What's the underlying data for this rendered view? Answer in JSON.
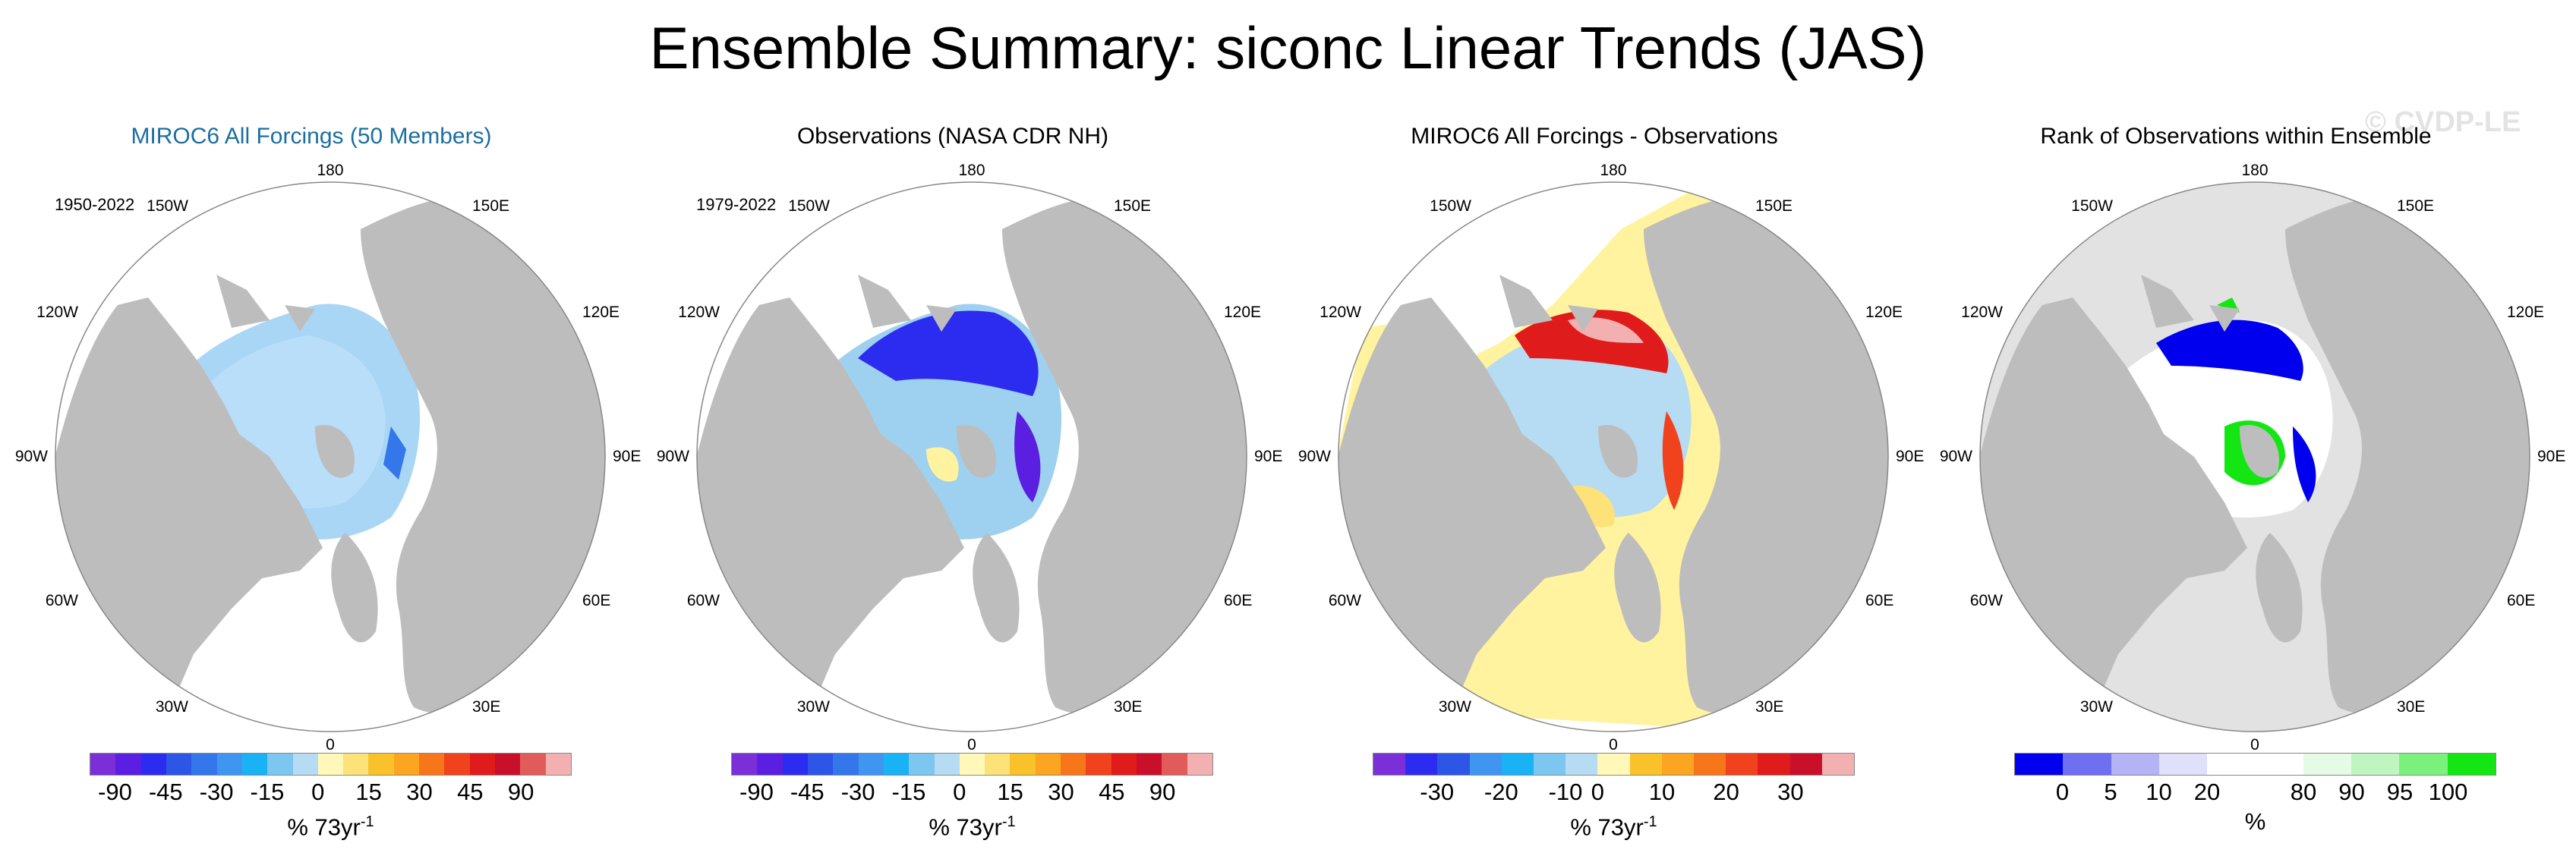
{
  "figure": {
    "title": "Ensemble Summary: siconc Linear Trends (JAS)",
    "watermark": "© CVDP-LE"
  },
  "chart_data": [
    {
      "type": "heatmap",
      "title": "MIROC6 All Forcings (50 Members)",
      "title_color": "#1b6fa0",
      "period": "1950-2022",
      "projection": "north polar stereographic",
      "longitude_labels": [
        "180",
        "150W",
        "150E",
        "120W",
        "120E",
        "90W",
        "90E",
        "60W",
        "60E",
        "30W",
        "30E",
        "0"
      ],
      "colorbar": {
        "colors": [
          "#7b2fd9",
          "#5a1fe0",
          "#2c2cf0",
          "#2d55e6",
          "#3477ea",
          "#3f95f0",
          "#19b2f5",
          "#7cc6f0",
          "#b5dcf3",
          "#fff8b8",
          "#fde27a",
          "#f9c22a",
          "#fba521",
          "#f7761a",
          "#f0421c",
          "#e01b1b",
          "#c8102a",
          "#e25b5b",
          "#f2b0b0"
        ],
        "tick_labels": [
          "-90",
          "-45",
          "-30",
          "-15",
          "0",
          "15",
          "30",
          "45",
          "90"
        ],
        "unit": "% 73yr",
        "unit_exponent": "-1"
      }
    },
    {
      "type": "heatmap",
      "title": "Observations (NASA CDR NH)",
      "title_color": "#000000",
      "period": "1979-2022",
      "projection": "north polar stereographic",
      "longitude_labels": [
        "180",
        "150W",
        "150E",
        "120W",
        "120E",
        "90W",
        "90E",
        "60W",
        "60E",
        "30W",
        "30E",
        "0"
      ],
      "colorbar": {
        "colors": [
          "#7b2fd9",
          "#5a1fe0",
          "#2c2cf0",
          "#2d55e6",
          "#3477ea",
          "#3f95f0",
          "#19b2f5",
          "#7cc6f0",
          "#b5dcf3",
          "#fff8b8",
          "#fde27a",
          "#f9c22a",
          "#fba521",
          "#f7761a",
          "#f0421c",
          "#e01b1b",
          "#c8102a",
          "#e25b5b",
          "#f2b0b0"
        ],
        "tick_labels": [
          "-90",
          "-45",
          "-30",
          "-15",
          "0",
          "15",
          "30",
          "45",
          "90"
        ],
        "unit": "% 73yr",
        "unit_exponent": "-1"
      }
    },
    {
      "type": "heatmap",
      "title": "MIROC6 All Forcings - Observations",
      "title_color": "#000000",
      "period": "",
      "projection": "north polar stereographic",
      "longitude_labels": [
        "180",
        "150W",
        "150E",
        "120W",
        "120E",
        "90W",
        "90E",
        "60W",
        "60E",
        "30W",
        "30E",
        "0"
      ],
      "colorbar": {
        "colors": [
          "#7b2fd9",
          "#2c2cf0",
          "#2d55e6",
          "#3f95f0",
          "#19b2f5",
          "#7cc6f0",
          "#b5dcf3",
          "#fff8b8",
          "#f9c22a",
          "#fba521",
          "#f7761a",
          "#f0421c",
          "#e01b1b",
          "#c8102a",
          "#f2b0b0"
        ],
        "tick_labels": [
          "-30",
          "-20",
          "-10",
          "0",
          "10",
          "20",
          "30"
        ],
        "unit": "% 73yr",
        "unit_exponent": "-1"
      }
    },
    {
      "type": "heatmap",
      "title": "Rank of Observations within Ensemble",
      "title_color": "#000000",
      "period": "",
      "projection": "north polar stereographic",
      "longitude_labels": [
        "180",
        "150W",
        "150E",
        "120W",
        "120E",
        "90W",
        "90E",
        "60W",
        "60E",
        "30W",
        "30E",
        "0"
      ],
      "colorbar": {
        "colors": [
          "#0000ee",
          "#6f6ff2",
          "#b4b4f5",
          "#e0e0fa",
          "#ffffff",
          "#ffffff",
          "#e6fbe6",
          "#bff6bf",
          "#7cf07c",
          "#14e614"
        ],
        "tick_labels": [
          "0",
          "5",
          "10",
          "20",
          "80",
          "90",
          "95",
          "100"
        ],
        "unit": "%",
        "unit_exponent": ""
      }
    }
  ]
}
